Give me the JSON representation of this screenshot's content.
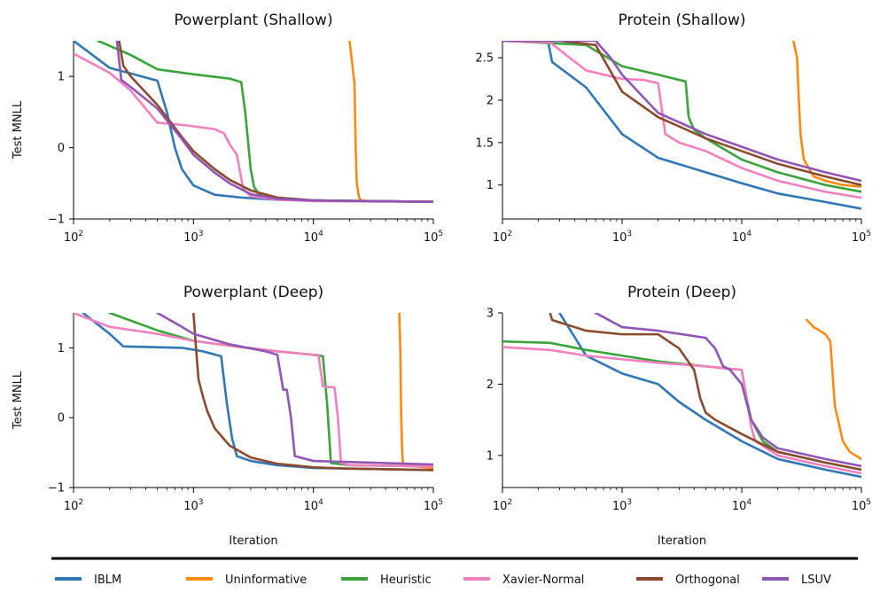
{
  "colors": {
    "IBLM": "#2f77b5",
    "Uninformative": "#ff8a10",
    "Heuristic": "#3aa43a",
    "Xavier-Normal": "#f27fbe",
    "Orthogonal": "#8c4a2f",
    "LSUV": "#9056b5"
  },
  "legend": {
    "items": [
      {
        "label": "IBLM",
        "color": "#2f77b5"
      },
      {
        "label": "Uninformative",
        "color": "#ff8a10"
      },
      {
        "label": "Heuristic",
        "color": "#3aa43a"
      },
      {
        "label": "Xavier-Normal",
        "color": "#f27fbe"
      },
      {
        "label": "Orthogonal",
        "color": "#8c4a2f"
      },
      {
        "label": "LSUV",
        "color": "#9056b5"
      }
    ]
  },
  "chart_data": [
    {
      "type": "line",
      "title": "Powerplant (Shallow)",
      "xlabel": "",
      "ylabel": "Test MNLL",
      "xscale": "log",
      "xlim": [
        100,
        100000
      ],
      "ylim": [
        -1,
        1.5
      ],
      "xticks": [
        {
          "base": "10",
          "exp": "2"
        },
        {
          "base": "10",
          "exp": "3"
        },
        {
          "base": "10",
          "exp": "4"
        },
        {
          "base": "10",
          "exp": "5"
        }
      ],
      "yticks": [
        "−1",
        "0",
        "1"
      ],
      "ytick_values": [
        -1,
        0,
        1
      ],
      "series": [
        {
          "name": "IBLM",
          "x": [
            100,
            200,
            500,
            600,
            700,
            800,
            1000,
            1500,
            2500,
            5000,
            10000,
            30000,
            100000
          ],
          "y": [
            1.5,
            1.12,
            0.94,
            0.5,
            0.0,
            -0.3,
            -0.53,
            -0.66,
            -0.7,
            -0.73,
            -0.74,
            -0.75,
            -0.76
          ]
        },
        {
          "name": "Uninformative",
          "x": [
            20000,
            21000,
            22000,
            22500,
            23000,
            24000,
            25000,
            30000,
            100000
          ],
          "y": [
            1.5,
            1.2,
            0.9,
            0.0,
            -0.5,
            -0.7,
            -0.74,
            -0.75,
            -0.76
          ]
        },
        {
          "name": "Heuristic",
          "x": [
            160,
            300,
            500,
            1000,
            2000,
            2500,
            2700,
            3000,
            3200,
            3500,
            4000,
            6000,
            10000,
            100000
          ],
          "y": [
            1.5,
            1.3,
            1.1,
            1.03,
            0.97,
            0.92,
            0.5,
            -0.3,
            -0.55,
            -0.65,
            -0.7,
            -0.73,
            -0.74,
            -0.76
          ]
        },
        {
          "name": "Xavier-Normal",
          "x": [
            100,
            200,
            300,
            500,
            800,
            1000,
            1500,
            1800,
            2000,
            2300,
            2600,
            3000,
            5000,
            10000,
            100000
          ],
          "y": [
            1.32,
            1.05,
            0.8,
            0.35,
            0.32,
            0.3,
            0.26,
            0.2,
            0.05,
            -0.1,
            -0.58,
            -0.68,
            -0.73,
            -0.75,
            -0.76
          ]
        },
        {
          "name": "Orthogonal",
          "x": [
            240,
            260,
            300,
            500,
            800,
            1000,
            1500,
            2000,
            3000,
            5000,
            10000,
            100000
          ],
          "y": [
            1.5,
            1.15,
            1.0,
            0.6,
            0.15,
            -0.05,
            -0.3,
            -0.45,
            -0.6,
            -0.7,
            -0.74,
            -0.76
          ]
        },
        {
          "name": "LSUV",
          "x": [
            230,
            250,
            300,
            500,
            800,
            1000,
            1500,
            2000,
            3000,
            5000,
            10000,
            100000
          ],
          "y": [
            1.5,
            0.95,
            0.85,
            0.55,
            0.12,
            -0.1,
            -0.35,
            -0.5,
            -0.65,
            -0.72,
            -0.74,
            -0.76
          ]
        }
      ]
    },
    {
      "type": "line",
      "title": "Protein (Shallow)",
      "xlabel": "",
      "ylabel": "",
      "xscale": "log",
      "xlim": [
        100,
        100000
      ],
      "ylim": [
        0.6,
        2.7
      ],
      "xticks": [
        {
          "base": "10",
          "exp": "2"
        },
        {
          "base": "10",
          "exp": "3"
        },
        {
          "base": "10",
          "exp": "4"
        },
        {
          "base": "10",
          "exp": "5"
        }
      ],
      "yticks": [
        "1",
        "1.5",
        "2",
        "2.5"
      ],
      "ytick_values": [
        1,
        1.5,
        2,
        2.5
      ],
      "series": [
        {
          "name": "IBLM",
          "x": [
            100,
            240,
            260,
            500,
            1000,
            2000,
            5000,
            10000,
            20000,
            50000,
            100000
          ],
          "y": [
            2.7,
            2.7,
            2.45,
            2.15,
            1.6,
            1.32,
            1.15,
            1.02,
            0.9,
            0.8,
            0.72
          ]
        },
        {
          "name": "Uninformative",
          "x": [
            27000,
            29000,
            30000,
            31000,
            33000,
            40000,
            50000,
            70000,
            100000
          ],
          "y": [
            2.7,
            2.5,
            2.0,
            1.6,
            1.3,
            1.1,
            1.05,
            1.0,
            0.98
          ]
        },
        {
          "name": "Heuristic",
          "x": [
            100,
            500,
            1000,
            2000,
            3400,
            3600,
            4000,
            5000,
            10000,
            20000,
            50000,
            100000
          ],
          "y": [
            2.7,
            2.65,
            2.4,
            2.3,
            2.22,
            1.8,
            1.65,
            1.55,
            1.3,
            1.15,
            1.0,
            0.92
          ]
        },
        {
          "name": "Xavier-Normal",
          "x": [
            100,
            250,
            500,
            1000,
            1500,
            2000,
            2300,
            3000,
            5000,
            10000,
            20000,
            50000,
            100000
          ],
          "y": [
            2.7,
            2.68,
            2.35,
            2.25,
            2.24,
            2.2,
            1.6,
            1.5,
            1.4,
            1.2,
            1.05,
            0.92,
            0.85
          ]
        },
        {
          "name": "Orthogonal",
          "x": [
            100,
            300,
            600,
            1000,
            2000,
            5000,
            10000,
            20000,
            50000,
            100000
          ],
          "y": [
            2.7,
            2.7,
            2.65,
            2.1,
            1.8,
            1.55,
            1.4,
            1.25,
            1.1,
            1.0
          ]
        },
        {
          "name": "LSUV",
          "x": [
            100,
            600,
            800,
            1000,
            2000,
            5000,
            10000,
            20000,
            50000,
            100000
          ],
          "y": [
            2.7,
            2.7,
            2.5,
            2.3,
            1.85,
            1.6,
            1.45,
            1.3,
            1.15,
            1.05
          ]
        }
      ]
    },
    {
      "type": "line",
      "title": "Powerplant (Deep)",
      "xlabel": "Iteration",
      "ylabel": "Test MNLL",
      "xscale": "log",
      "xlim": [
        100,
        100000
      ],
      "ylim": [
        -1,
        1.5
      ],
      "xticks": [
        {
          "base": "10",
          "exp": "2"
        },
        {
          "base": "10",
          "exp": "3"
        },
        {
          "base": "10",
          "exp": "4"
        },
        {
          "base": "10",
          "exp": "5"
        }
      ],
      "yticks": [
        "−1",
        "0",
        "1"
      ],
      "ytick_values": [
        -1,
        0,
        1
      ],
      "series": [
        {
          "name": "IBLM",
          "x": [
            120,
            200,
            260,
            800,
            1200,
            1700,
            1900,
            2100,
            2300,
            3000,
            5000,
            10000,
            100000
          ],
          "y": [
            1.5,
            1.2,
            1.02,
            1.0,
            0.95,
            0.88,
            0.2,
            -0.3,
            -0.55,
            -0.62,
            -0.68,
            -0.72,
            -0.75
          ]
        },
        {
          "name": "Uninformative",
          "x": [
            52000,
            53000,
            54000,
            55000,
            56000,
            100000
          ],
          "y": [
            1.5,
            1.0,
            0.0,
            -0.5,
            -0.68,
            -0.72
          ]
        },
        {
          "name": "Heuristic",
          "x": [
            200,
            500,
            800,
            1000,
            2000,
            5000,
            10000,
            12000,
            13000,
            14000,
            20000,
            100000
          ],
          "y": [
            1.5,
            1.25,
            1.15,
            1.1,
            1.03,
            0.95,
            0.9,
            0.88,
            0.2,
            -0.65,
            -0.68,
            -0.7
          ]
        },
        {
          "name": "Xavier-Normal",
          "x": [
            100,
            200,
            500,
            1000,
            2000,
            5000,
            10000,
            11000,
            12000,
            15000,
            16000,
            17000,
            20000,
            100000
          ],
          "y": [
            1.5,
            1.3,
            1.2,
            1.1,
            1.03,
            0.95,
            0.9,
            0.9,
            0.45,
            0.43,
            0.0,
            -0.65,
            -0.68,
            -0.7
          ]
        },
        {
          "name": "Orthogonal",
          "x": [
            1000,
            1050,
            1100,
            1200,
            1300,
            1500,
            2000,
            3000,
            5000,
            10000,
            20000,
            100000
          ],
          "y": [
            1.5,
            1.0,
            0.55,
            0.3,
            0.1,
            -0.15,
            -0.4,
            -0.57,
            -0.66,
            -0.71,
            -0.73,
            -0.75
          ]
        },
        {
          "name": "LSUV",
          "x": [
            500,
            800,
            1000,
            2000,
            4000,
            5000,
            5600,
            6000,
            6500,
            7000,
            10000,
            100000
          ],
          "y": [
            1.5,
            1.3,
            1.2,
            1.05,
            0.95,
            0.9,
            0.4,
            0.4,
            0.0,
            -0.55,
            -0.62,
            -0.67
          ]
        }
      ]
    },
    {
      "type": "line",
      "title": "Protein (Deep)",
      "xlabel": "Iteration",
      "ylabel": "",
      "xscale": "log",
      "xlim": [
        100,
        100000
      ],
      "ylim": [
        0.55,
        3.0
      ],
      "xticks": [
        {
          "base": "10",
          "exp": "2"
        },
        {
          "base": "10",
          "exp": "3"
        },
        {
          "base": "10",
          "exp": "4"
        },
        {
          "base": "10",
          "exp": "5"
        }
      ],
      "yticks": [
        "1",
        "2",
        "3"
      ],
      "ytick_values": [
        1,
        2,
        3
      ],
      "series": [
        {
          "name": "IBLM",
          "x": [
            300,
            500,
            1000,
            2000,
            3000,
            5000,
            10000,
            20000,
            50000,
            100000
          ],
          "y": [
            3.0,
            2.4,
            2.15,
            2.0,
            1.75,
            1.5,
            1.2,
            0.95,
            0.8,
            0.7
          ]
        },
        {
          "name": "Uninformative",
          "x": [
            35000,
            40000,
            45000,
            50000,
            55000,
            60000,
            70000,
            80000,
            100000
          ],
          "y": [
            2.9,
            2.8,
            2.75,
            2.7,
            2.6,
            1.7,
            1.2,
            1.05,
            0.95
          ]
        },
        {
          "name": "Heuristic",
          "x": [
            100,
            250,
            500,
            1000,
            2000,
            5000,
            10000,
            11000,
            12000,
            15000,
            20000,
            50000,
            100000
          ],
          "y": [
            2.6,
            2.58,
            2.48,
            2.4,
            2.32,
            2.25,
            2.2,
            1.8,
            1.5,
            1.2,
            1.05,
            0.9,
            0.8
          ]
        },
        {
          "name": "Xavier-Normal",
          "x": [
            100,
            250,
            500,
            1000,
            2000,
            5000,
            10000,
            11000,
            12000,
            13000,
            20000,
            50000,
            100000
          ],
          "y": [
            2.52,
            2.48,
            2.4,
            2.35,
            2.3,
            2.25,
            2.2,
            1.8,
            1.4,
            1.2,
            1.0,
            0.85,
            0.75
          ]
        },
        {
          "name": "Orthogonal",
          "x": [
            250,
            260,
            500,
            1000,
            2000,
            3000,
            4000,
            4500,
            5000,
            6000,
            10000,
            20000,
            50000,
            100000
          ],
          "y": [
            3.0,
            2.9,
            2.75,
            2.7,
            2.7,
            2.5,
            2.2,
            1.8,
            1.6,
            1.5,
            1.3,
            1.05,
            0.9,
            0.8
          ]
        },
        {
          "name": "LSUV",
          "x": [
            600,
            1000,
            2000,
            5000,
            6000,
            7000,
            8000,
            10000,
            12000,
            15000,
            20000,
            50000,
            100000
          ],
          "y": [
            3.0,
            2.8,
            2.75,
            2.65,
            2.5,
            2.25,
            2.2,
            2.0,
            1.5,
            1.25,
            1.1,
            0.95,
            0.85
          ]
        }
      ]
    }
  ]
}
